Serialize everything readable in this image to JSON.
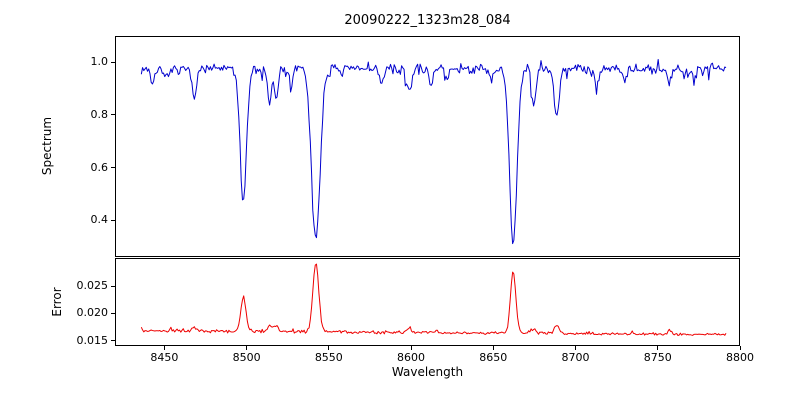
{
  "background": "#ffffff",
  "chart_data": {
    "type": "line",
    "title": "20090222_1323m28_084",
    "xlabel": "Wavelength",
    "xlim": [
      8420,
      8800
    ],
    "xticks": [
      8450,
      8500,
      8550,
      8600,
      8650,
      8700,
      8750,
      8800
    ],
    "xtick_labels": [
      "8450",
      "8500",
      "8550",
      "8600",
      "8650",
      "8700",
      "8750",
      "8800"
    ],
    "grid": false,
    "legend": "none",
    "panels": [
      {
        "name": "spectrum",
        "ylabel": "Spectrum",
        "ylim": [
          0.26,
          1.1
        ],
        "yticks": [
          1.0,
          0.8,
          0.6,
          0.4
        ],
        "ytick_labels": [
          "1.0",
          "0.8",
          "0.6",
          "0.4"
        ],
        "color": "#0000cd",
        "x_start": 8436,
        "x_end": 8792,
        "x_step": 0.75,
        "continuum": 0.975,
        "noise_amplitude": 0.022,
        "absorption_lines": [
          {
            "center": 8443,
            "depth": 0.055,
            "width": 1.2
          },
          {
            "center": 8452,
            "depth": 0.045,
            "width": 1.2
          },
          {
            "center": 8468,
            "depth": 0.105,
            "width": 1.3
          },
          {
            "center": 8498.0,
            "depth": 0.495,
            "width": 2.0
          },
          {
            "center": 8514.1,
            "depth": 0.125,
            "width": 1.2
          },
          {
            "center": 8518.1,
            "depth": 0.115,
            "width": 1.2
          },
          {
            "center": 8527,
            "depth": 0.05,
            "width": 1.2
          },
          {
            "center": 8542.1,
            "depth": 0.65,
            "width": 2.6
          },
          {
            "center": 8582.3,
            "depth": 0.055,
            "width": 1.2
          },
          {
            "center": 8598.8,
            "depth": 0.085,
            "width": 1.3
          },
          {
            "center": 8611.8,
            "depth": 0.05,
            "width": 1.2
          },
          {
            "center": 8621.6,
            "depth": 0.045,
            "width": 1.2
          },
          {
            "center": 8648.5,
            "depth": 0.045,
            "width": 1.2
          },
          {
            "center": 8662.1,
            "depth": 0.665,
            "width": 2.3
          },
          {
            "center": 8674.7,
            "depth": 0.145,
            "width": 1.3
          },
          {
            "center": 8688.6,
            "depth": 0.19,
            "width": 1.4
          },
          {
            "center": 8712.7,
            "depth": 0.065,
            "width": 1.2
          },
          {
            "center": 8730,
            "depth": 0.04,
            "width": 1.2
          },
          {
            "center": 8757,
            "depth": 0.05,
            "width": 1.2
          },
          {
            "center": 8772,
            "depth": 0.04,
            "width": 1.2
          }
        ]
      },
      {
        "name": "error",
        "ylabel": "Error",
        "ylim": [
          0.014,
          0.0302
        ],
        "yticks": [
          0.025,
          0.02,
          0.015
        ],
        "ytick_labels": [
          "0.025",
          "0.020",
          "0.015"
        ],
        "color": "#ee0000",
        "x_start": 8436,
        "x_end": 8792,
        "x_step": 0.75,
        "baseline_start": 0.0168,
        "baseline_end": 0.0161,
        "noise_amplitude": 0.0002,
        "peaks": [
          {
            "center": 8434,
            "height": 0.0018,
            "width": 1.4
          },
          {
            "center": 8468,
            "height": 0.0006,
            "width": 1.3
          },
          {
            "center": 8498.0,
            "height": 0.0062,
            "width": 1.6
          },
          {
            "center": 8514.1,
            "height": 0.001,
            "width": 1.3
          },
          {
            "center": 8518.1,
            "height": 0.0012,
            "width": 1.3
          },
          {
            "center": 8542.1,
            "height": 0.0127,
            "width": 1.8
          },
          {
            "center": 8598.8,
            "height": 0.0006,
            "width": 1.3
          },
          {
            "center": 8662.1,
            "height": 0.0115,
            "width": 1.6
          },
          {
            "center": 8674.7,
            "height": 0.0008,
            "width": 1.3
          },
          {
            "center": 8688.6,
            "height": 0.0014,
            "width": 1.4
          },
          {
            "center": 8757,
            "height": 0.0007,
            "width": 1.2
          }
        ]
      }
    ]
  }
}
